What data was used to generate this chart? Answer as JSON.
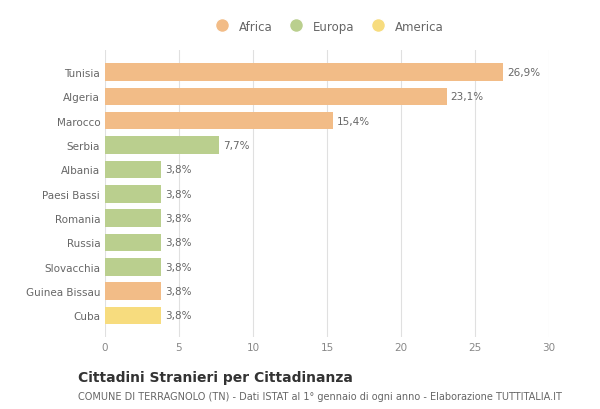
{
  "categories": [
    "Tunisia",
    "Algeria",
    "Marocco",
    "Serbia",
    "Albania",
    "Paesi Bassi",
    "Romania",
    "Russia",
    "Slovacchia",
    "Guinea Bissau",
    "Cuba"
  ],
  "values": [
    26.9,
    23.1,
    15.4,
    7.7,
    3.8,
    3.8,
    3.8,
    3.8,
    3.8,
    3.8,
    3.8
  ],
  "labels": [
    "26,9%",
    "23,1%",
    "15,4%",
    "7,7%",
    "3,8%",
    "3,8%",
    "3,8%",
    "3,8%",
    "3,8%",
    "3,8%",
    "3,8%"
  ],
  "continents": [
    "Africa",
    "Africa",
    "Africa",
    "Europa",
    "Europa",
    "Europa",
    "Europa",
    "Europa",
    "Europa",
    "Africa",
    "America"
  ],
  "colors": {
    "Africa": "#F2BC87",
    "Europa": "#BACF8E",
    "America": "#F7DC7E"
  },
  "legend_labels": [
    "Africa",
    "Europa",
    "America"
  ],
  "legend_colors": [
    "#F2BC87",
    "#BACF8E",
    "#F7DC7E"
  ],
  "xlim": [
    0,
    30
  ],
  "xticks": [
    0,
    5,
    10,
    15,
    20,
    25,
    30
  ],
  "title": "Cittadini Stranieri per Cittadinanza",
  "subtitle": "COMUNE DI TERRAGNOLO (TN) - Dati ISTAT al 1° gennaio di ogni anno - Elaborazione TUTTITALIA.IT",
  "title_fontsize": 10,
  "subtitle_fontsize": 7,
  "label_fontsize": 7.5,
  "tick_fontsize": 7.5,
  "legend_fontsize": 8.5,
  "background_color": "#ffffff",
  "grid_color": "#e0e0e0",
  "bar_height": 0.72
}
